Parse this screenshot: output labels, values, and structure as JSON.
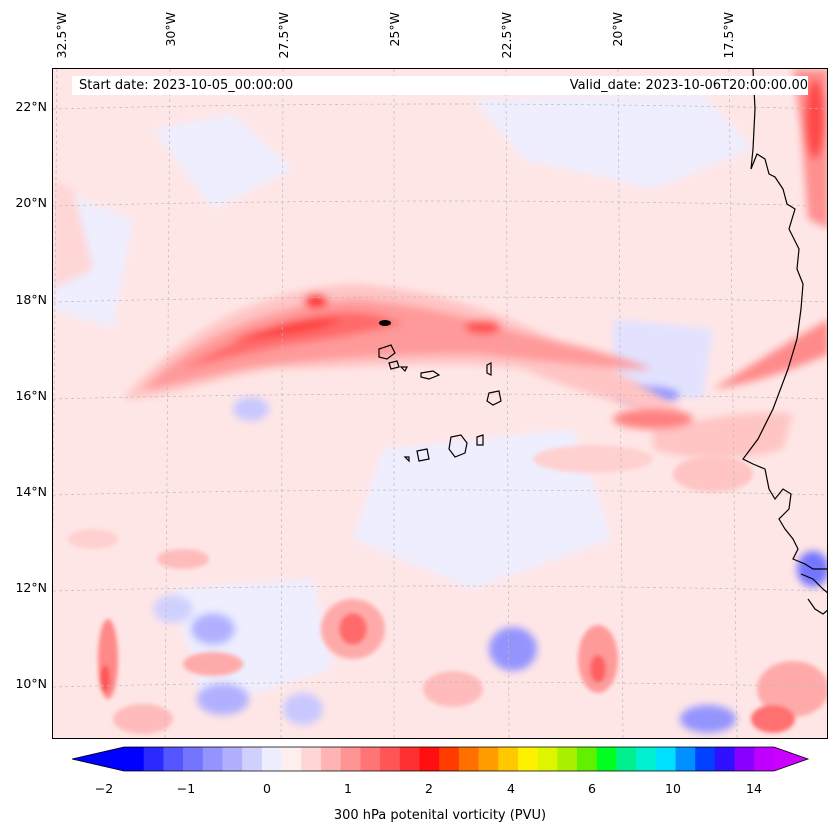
{
  "header": {
    "start_date": "Start date: 2023-10-05_00:00:00",
    "valid_date": "Valid_date: 2023-10-06T20:00:00.00"
  },
  "map": {
    "longitude_labels": [
      "32.5°W",
      "30°W",
      "27.5°W",
      "25°W",
      "22.5°W",
      "20°W",
      "17.5°W"
    ],
    "latitude_labels": [
      "22°N",
      "20°N",
      "18°N",
      "16°N",
      "14°N",
      "12°N",
      "10°N"
    ],
    "extent": {
      "lon_min": -33.0,
      "lon_max": -15.8,
      "lat_min": 8.9,
      "lat_max": 22.8
    },
    "field": "300 hPa potential vorticity",
    "coastline_color": "#000000",
    "grid_color": "#bbbbbb"
  },
  "colorbar": {
    "label": "300 hPa potenital vorticity (PVU)",
    "ticks": [
      "−2",
      "−1",
      "0",
      "1",
      "2",
      "4",
      "6",
      "10",
      "14"
    ],
    "colors": [
      "#0000ff",
      "#2a2aff",
      "#5555ff",
      "#7474ff",
      "#9494ff",
      "#b0b0ff",
      "#d0d0ff",
      "#eeeeff",
      "#ffeeee",
      "#ffd6d6",
      "#ffb3b3",
      "#ff9494",
      "#ff7474",
      "#ff5555",
      "#ff3030",
      "#ff0f0f",
      "#ff3b00",
      "#ff7000",
      "#ff9c00",
      "#ffc800",
      "#fff000",
      "#ddf500",
      "#a8f000",
      "#60f000",
      "#00ff20",
      "#00f090",
      "#00f0d0",
      "#00e0ff",
      "#0090ff",
      "#0040ff",
      "#3010ff",
      "#8a00ff",
      "#c000ff"
    ],
    "extend_low_color": "#0000ff",
    "extend_high_color": "#cc00ff"
  }
}
